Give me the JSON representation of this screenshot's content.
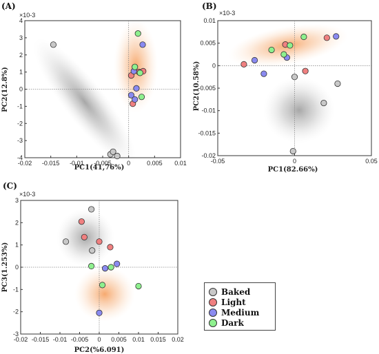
{
  "colors": {
    "Baked": "#c8c8c8",
    "Light": "#f08080",
    "Medium": "#8a8af0",
    "Dark": "#8ef08e"
  },
  "legend": {
    "items": [
      {
        "label": "Baked",
        "color": "#c8c8c8"
      },
      {
        "label": "Light",
        "color": "#f08080"
      },
      {
        "label": "Medium",
        "color": "#8a8af0"
      },
      {
        "label": "Dark",
        "color": "#8ef08e"
      }
    ]
  },
  "chart_data": [
    {
      "label": "(A)",
      "type": "scatter",
      "xlabel": "PC1(41,76%)",
      "ylabel": "PC2(12.8%)",
      "multiplier": "×10-3",
      "xlim": [
        -0.02,
        0.01
      ],
      "ylim": [
        -4,
        4
      ],
      "xticks": [
        "-0.02",
        "-0.015",
        "-0.01",
        "-0.005",
        "0",
        "0.005",
        "0.01"
      ],
      "yticks": [
        "-4",
        "-3",
        "-2",
        "-1",
        "0",
        "1",
        "2",
        "3",
        "4"
      ],
      "series": [
        {
          "name": "Baked",
          "points": [
            [
              -0.0145,
              2.6
            ],
            [
              -0.0035,
              -3.8
            ],
            [
              -0.003,
              -3.65
            ],
            [
              -0.0022,
              -3.9
            ]
          ]
        },
        {
          "name": "Light",
          "points": [
            [
              0.0005,
              0.8
            ],
            [
              0.0008,
              -0.85
            ],
            [
              0.002,
              1.0
            ],
            [
              0.0028,
              1.05
            ]
          ]
        },
        {
          "name": "Medium",
          "points": [
            [
              0.0027,
              2.6
            ],
            [
              0.001,
              1.05
            ],
            [
              0.0015,
              0.05
            ],
            [
              0.0005,
              -0.35
            ],
            [
              0.0012,
              -0.6
            ]
          ]
        },
        {
          "name": "Dark",
          "points": [
            [
              0.0018,
              3.25
            ],
            [
              0.0012,
              1.3
            ],
            [
              0.0022,
              0.95
            ],
            [
              0.0025,
              -0.45
            ]
          ]
        }
      ]
    },
    {
      "label": "(B)",
      "type": "scatter",
      "xlabel": "PC1(82.66%)",
      "ylabel": "PC2(10.58%)",
      "multiplier": "×10-3",
      "xlim": [
        -0.05,
        0.05
      ],
      "ylim": [
        -0.02,
        0.01
      ],
      "xticks": [
        "-0.05",
        "0",
        "0.05"
      ],
      "yticks": [
        "-0.02",
        "-0.015",
        "-0.01",
        "-0.005",
        "0",
        "0.005",
        "0.01"
      ],
      "series": [
        {
          "name": "Baked",
          "points": [
            [
              0.0,
              -0.0025
            ],
            [
              0.028,
              -0.004
            ],
            [
              0.019,
              -0.0083
            ],
            [
              -0.001,
              -0.019
            ]
          ]
        },
        {
          "name": "Light",
          "points": [
            [
              -0.033,
              0.0003
            ],
            [
              -0.006,
              0.0047
            ],
            [
              0.007,
              -0.0012
            ],
            [
              0.021,
              0.0062
            ]
          ]
        },
        {
          "name": "Medium",
          "points": [
            [
              -0.026,
              0.0012
            ],
            [
              -0.02,
              -0.0018
            ],
            [
              -0.005,
              0.0018
            ],
            [
              0.027,
              0.0065
            ]
          ]
        },
        {
          "name": "Dark",
          "points": [
            [
              -0.015,
              0.0035
            ],
            [
              -0.007,
              0.0025
            ],
            [
              -0.003,
              0.0045
            ],
            [
              0.006,
              0.0064
            ]
          ]
        }
      ]
    },
    {
      "label": "(C)",
      "type": "scatter",
      "xlabel": "PC2(%6.091)",
      "ylabel": "PC3(1.253%)",
      "multiplier": "×10-3",
      "xlim": [
        -0.02,
        0.02
      ],
      "ylim": [
        -3,
        3
      ],
      "xticks": [
        "-0.02",
        "-0.015",
        "-0.01",
        "-0.005",
        "0",
        "0.005",
        "0.01",
        "0.015",
        "0.02"
      ],
      "yticks": [
        "-3",
        "-2",
        "-1",
        "0",
        "1",
        "2",
        "3"
      ],
      "series": [
        {
          "name": "Baked",
          "points": [
            [
              -0.0085,
              1.15
            ],
            [
              -0.002,
              2.6
            ],
            [
              -0.0018,
              0.75
            ]
          ]
        },
        {
          "name": "Light",
          "points": [
            [
              -0.0045,
              2.05
            ],
            [
              -0.0038,
              1.35
            ],
            [
              0.0,
              1.15
            ],
            [
              0.0028,
              0.9
            ]
          ]
        },
        {
          "name": "Medium",
          "points": [
            [
              0.0015,
              -0.05
            ],
            [
              0.0045,
              0.15
            ],
            [
              0.0,
              -2.05
            ]
          ]
        },
        {
          "name": "Dark",
          "points": [
            [
              -0.002,
              0.05
            ],
            [
              0.003,
              0.0
            ],
            [
              0.0008,
              -0.8
            ],
            [
              0.01,
              -0.85
            ]
          ]
        }
      ]
    }
  ]
}
